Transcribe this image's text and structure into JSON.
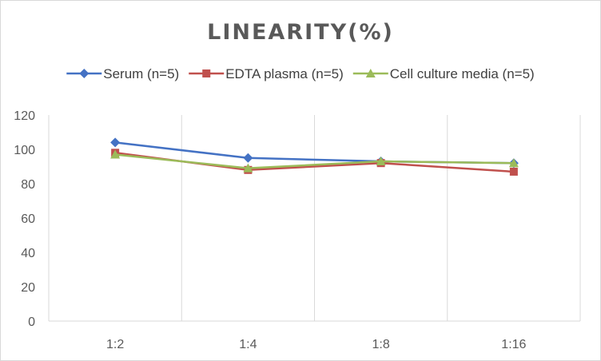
{
  "chart_data": {
    "type": "line",
    "title": "LINEARITY(%)",
    "xlabel": "",
    "ylabel": "",
    "categories": [
      "1:2",
      "1:4",
      "1:8",
      "1:16"
    ],
    "ylim": [
      0,
      120
    ],
    "yticks": [
      0,
      20,
      40,
      60,
      80,
      100,
      120
    ],
    "grid": "vertical",
    "legend_position": "top",
    "series": [
      {
        "name": "Serum (n=5)",
        "values": [
          104,
          95,
          93,
          92
        ],
        "color": "#4472c4",
        "marker": "diamond"
      },
      {
        "name": "EDTA plasma (n=5)",
        "values": [
          98,
          88,
          92,
          87
        ],
        "color": "#c0504d",
        "marker": "square"
      },
      {
        "name": "Cell culture media (n=5)",
        "values": [
          97,
          89,
          93,
          92
        ],
        "color": "#9bbb59",
        "marker": "triangle"
      }
    ]
  }
}
